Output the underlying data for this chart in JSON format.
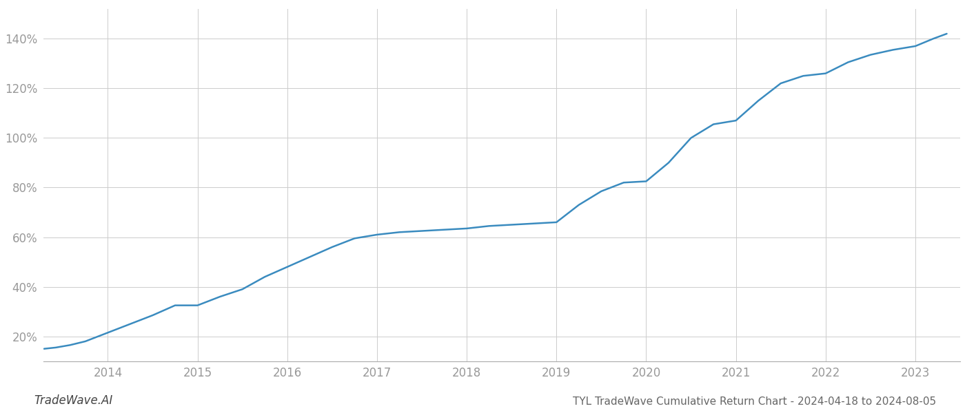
{
  "title": "TYL TradeWave Cumulative Return Chart - 2024-04-18 to 2024-08-05",
  "watermark": "TradeWave.AI",
  "line_color": "#3a8bbf",
  "background_color": "#ffffff",
  "grid_color": "#cccccc",
  "x_years": [
    2014,
    2015,
    2016,
    2017,
    2018,
    2019,
    2020,
    2021,
    2022,
    2023
  ],
  "x_data": [
    2013.29,
    2013.42,
    2013.58,
    2013.75,
    2014.0,
    2014.25,
    2014.5,
    2014.75,
    2015.0,
    2015.25,
    2015.5,
    2015.75,
    2016.0,
    2016.25,
    2016.5,
    2016.75,
    2017.0,
    2017.25,
    2017.5,
    2017.75,
    2018.0,
    2018.25,
    2018.5,
    2018.75,
    2019.0,
    2019.25,
    2019.5,
    2019.75,
    2020.0,
    2020.25,
    2020.5,
    2020.75,
    2021.0,
    2021.25,
    2021.5,
    2021.75,
    2022.0,
    2022.25,
    2022.5,
    2022.75,
    2023.0,
    2023.2,
    2023.35
  ],
  "y_data": [
    15.0,
    15.5,
    16.5,
    18.0,
    21.5,
    25.0,
    28.5,
    32.5,
    32.5,
    36.0,
    39.0,
    44.0,
    48.0,
    52.0,
    56.0,
    59.5,
    61.0,
    62.0,
    62.5,
    63.0,
    63.5,
    64.5,
    65.0,
    65.5,
    66.0,
    73.0,
    78.5,
    82.0,
    82.5,
    90.0,
    100.0,
    105.5,
    107.0,
    115.0,
    122.0,
    125.0,
    126.0,
    130.5,
    133.5,
    135.5,
    137.0,
    140.0,
    142.0
  ],
  "yticks": [
    20,
    40,
    60,
    80,
    100,
    120,
    140
  ],
  "ylim": [
    10,
    152
  ],
  "xlim_min": 2013.28,
  "xlim_max": 2023.5,
  "tick_label_color": "#999999",
  "title_color": "#666666",
  "watermark_color": "#444444",
  "line_width": 1.8,
  "title_fontsize": 11,
  "tick_fontsize": 12,
  "watermark_fontsize": 12
}
